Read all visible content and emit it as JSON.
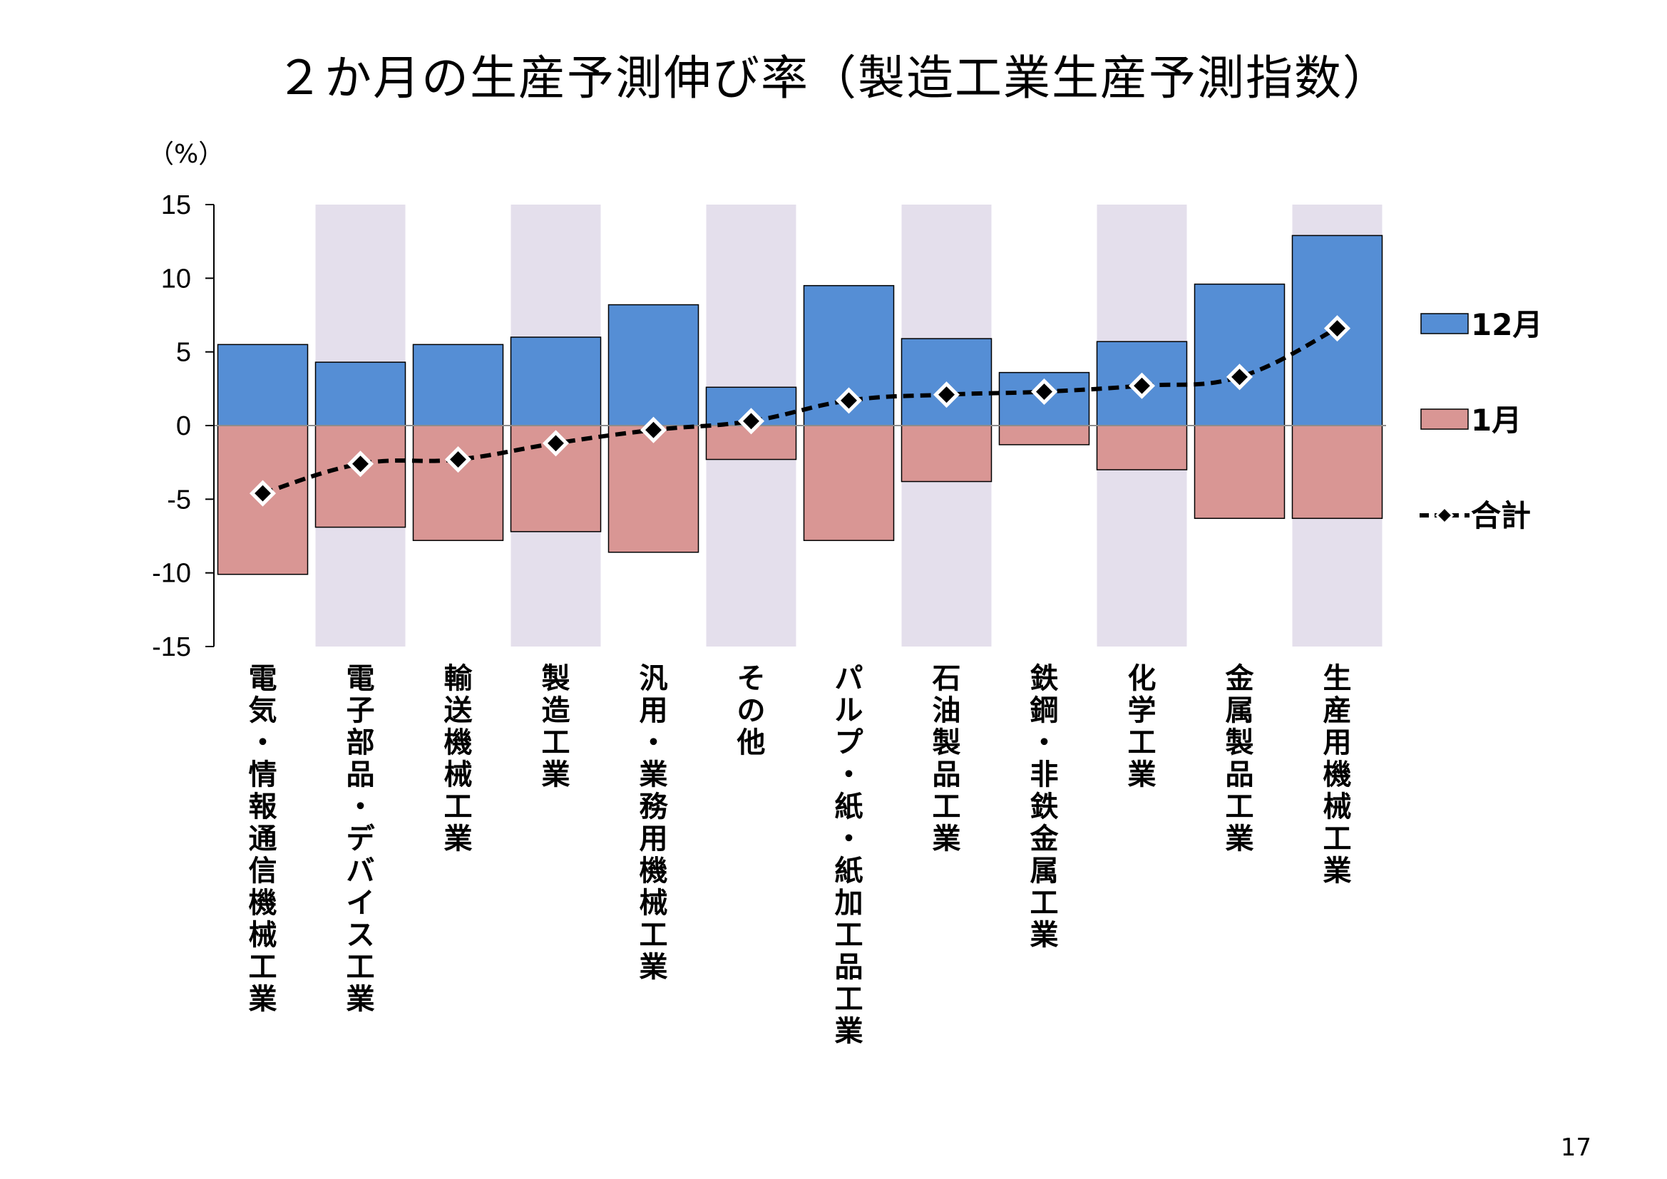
{
  "title": "２か月の生産予測伸び率（製造工業生産予測指数）",
  "page_number": "17",
  "colors": {
    "dec_bar": "#558ed5",
    "jan_bar": "#d99694",
    "band": "#e4dfec",
    "total_line": "#000000",
    "marker_fill": "#000000",
    "marker_stroke": "#ffffff"
  },
  "chart_data": {
    "type": "bar",
    "title": "２か月の生産予測伸び率（製造工業生産予測指数）",
    "ylabel": "（%）",
    "ylim": [
      -15,
      15
    ],
    "yticks": [
      15,
      10,
      5,
      0,
      -5,
      -10,
      -15
    ],
    "ytick_labels": [
      "15",
      "10",
      "5",
      "0",
      "-5",
      "-10",
      "-15"
    ],
    "grid": false,
    "legend_position": "right",
    "shaded_alternate_categories": true,
    "categories": [
      "電気・情報通信機械工業",
      "電子部品・デバイス工業",
      "輸送機械工業",
      "製造工業",
      "汎用・業務用機械工業",
      "その他",
      "パルプ・紙・紙加工品工業",
      "石油製品工業",
      "鉄鋼・非鉄金属工業",
      "化学工業",
      "金属製品工業",
      "生産用機械工業"
    ],
    "series": [
      {
        "name": "12月",
        "type": "bar",
        "values": [
          5.5,
          4.3,
          5.5,
          6.0,
          8.2,
          2.6,
          9.5,
          5.9,
          3.6,
          5.7,
          9.6,
          12.9
        ]
      },
      {
        "name": "1月",
        "type": "bar",
        "values": [
          -10.1,
          -6.9,
          -7.8,
          -7.2,
          -8.6,
          -2.3,
          -7.8,
          -3.8,
          -1.3,
          -3.0,
          -6.3,
          -6.3
        ]
      },
      {
        "name": "合計",
        "type": "line",
        "values": [
          -4.6,
          -2.6,
          -2.3,
          -1.2,
          -0.3,
          0.3,
          1.7,
          2.1,
          2.3,
          2.7,
          3.3,
          6.6
        ]
      }
    ]
  }
}
